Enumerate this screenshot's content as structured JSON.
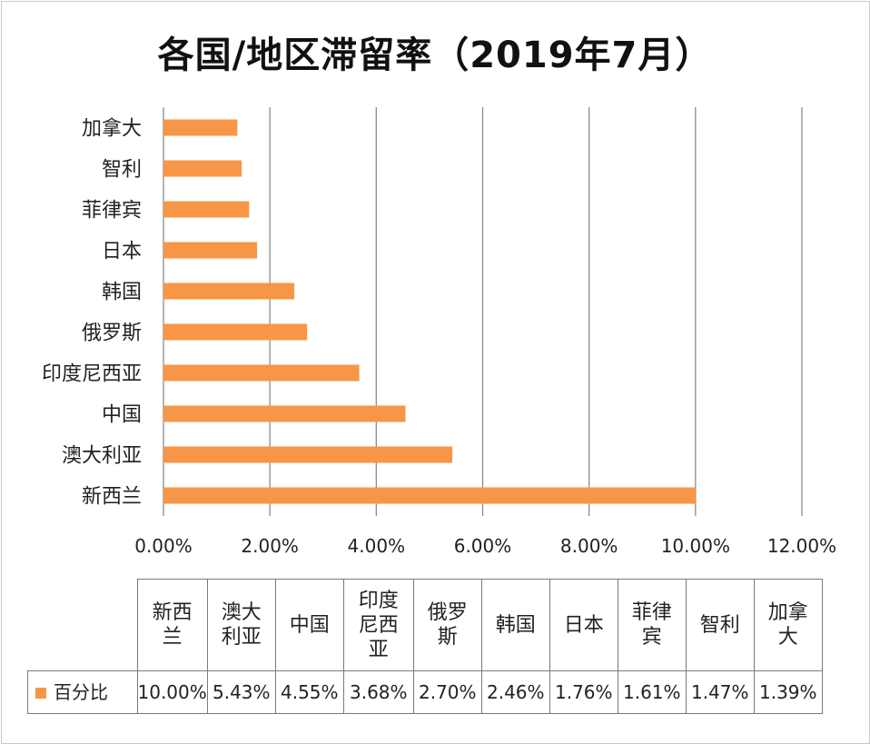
{
  "chart_data": {
    "type": "bar",
    "orientation": "horizontal",
    "title": "各国/地区滞留率（2019年7月）",
    "categories": [
      "新西兰",
      "澳大利亚",
      "中国",
      "印度尼西亚",
      "俄罗斯",
      "韩国",
      "日本",
      "菲律宾",
      "智利",
      "加拿大"
    ],
    "series": [
      {
        "name": "百分比",
        "values": [
          10.0,
          5.43,
          4.55,
          3.68,
          2.7,
          2.46,
          1.76,
          1.61,
          1.47,
          1.39
        ]
      }
    ],
    "value_labels": [
      "10.00%",
      "5.43%",
      "4.55%",
      "3.68%",
      "2.70%",
      "2.46%",
      "1.76%",
      "1.61%",
      "1.47%",
      "1.39%"
    ],
    "x_ticks": [
      "0.00%",
      "2.00%",
      "4.00%",
      "6.00%",
      "8.00%",
      "10.00%",
      "12.00%"
    ],
    "xlim": [
      0,
      12
    ],
    "grid": "vertical",
    "color": "#f79646",
    "data_table": true
  }
}
